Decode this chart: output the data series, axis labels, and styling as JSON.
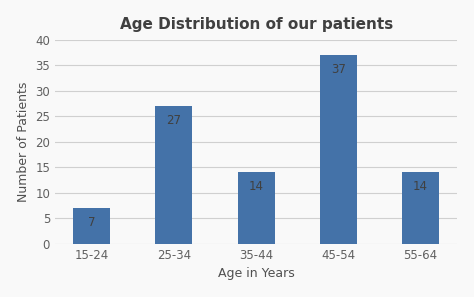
{
  "title": "Age Distribution of our patients",
  "xlabel": "Age in Years",
  "ylabel": "Number of Patients",
  "categories": [
    "15-24",
    "25-34",
    "35-44",
    "45-54",
    "55-64"
  ],
  "values": [
    7,
    27,
    14,
    37,
    14
  ],
  "bar_color": "#4472a8",
  "ylim": [
    0,
    40
  ],
  "yticks": [
    0,
    5,
    10,
    15,
    20,
    25,
    30,
    35,
    40
  ],
  "title_fontsize": 11,
  "label_fontsize": 9,
  "tick_fontsize": 8.5,
  "bar_label_fontsize": 8.5,
  "title_color": "#404040",
  "label_color": "#505050",
  "tick_color": "#606060",
  "bar_label_color": "#404040",
  "background_color": "#f9f9f9",
  "plot_bg_color": "#f9f9f9",
  "grid_color": "#d0d0d0",
  "bar_width": 0.45
}
